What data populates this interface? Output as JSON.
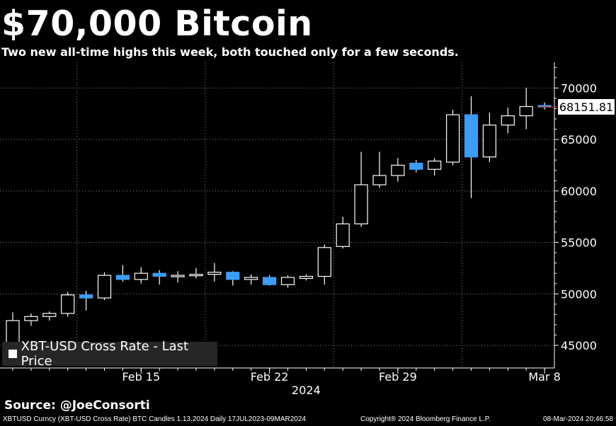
{
  "header": {
    "title": "$70,000 Bitcoin",
    "subtitle": "Two new all-time highs this week, both touched only for a few seconds."
  },
  "source": "Source: @JoeConsorti",
  "footer": {
    "left": "XBTUSD Curncy (XBT-USD Cross Rate) BTC Candles 1.13.2024  Daily 17JUL2023-09MAR2024",
    "middle": "Copyright® 2024 Bloomberg Finance L.P.",
    "right": "08-Mar-2024 20:46:58"
  },
  "colors": {
    "background": "#000000",
    "up_candle": "#000000",
    "down_candle": "#3d9df5",
    "grid": "#8a8a8a",
    "last_price_line": "#c0392b"
  },
  "chart_data": {
    "type": "candlestick",
    "title": "$70,000 Bitcoin",
    "legend": [
      "XBT-USD Cross Rate - Last Price"
    ],
    "legend_position": "bottom-left",
    "last_price": "68151.81",
    "y_axis_side": "right",
    "ylim": [
      42800,
      72500
    ],
    "yticks": [
      45000,
      50000,
      55000,
      60000,
      65000,
      70000
    ],
    "ytick_labels": [
      "45000",
      "50000",
      "55000",
      "60000",
      "65000",
      "70000"
    ],
    "xtick_labels": [
      "Feb 15",
      "Feb 22",
      "Feb 29",
      "Mar 8"
    ],
    "xtick_dates": [
      "2024-02-15",
      "2024-02-22",
      "2024-02-29",
      "2024-03-08"
    ],
    "xlabel": "2024",
    "candles": [
      {
        "date": "2024-02-08",
        "open": 45300,
        "high": 48200,
        "low": 45000,
        "close": 47400
      },
      {
        "date": "2024-02-09",
        "open": 47400,
        "high": 48100,
        "low": 46900,
        "close": 47800
      },
      {
        "date": "2024-02-10",
        "open": 47800,
        "high": 48300,
        "low": 47400,
        "close": 48100
      },
      {
        "date": "2024-02-11",
        "open": 48100,
        "high": 50200,
        "low": 47800,
        "close": 49900
      },
      {
        "date": "2024-02-12",
        "open": 49900,
        "high": 50300,
        "low": 48400,
        "close": 49600
      },
      {
        "date": "2024-02-13",
        "open": 49600,
        "high": 52100,
        "low": 49400,
        "close": 51800
      },
      {
        "date": "2024-02-14",
        "open": 51800,
        "high": 52800,
        "low": 51200,
        "close": 51400
      },
      {
        "date": "2024-02-15",
        "open": 51400,
        "high": 52600,
        "low": 51000,
        "close": 52000
      },
      {
        "date": "2024-02-16",
        "open": 52000,
        "high": 52300,
        "low": 50900,
        "close": 51700
      },
      {
        "date": "2024-02-17",
        "open": 51700,
        "high": 52200,
        "low": 51100,
        "close": 51800
      },
      {
        "date": "2024-02-18",
        "open": 51800,
        "high": 52500,
        "low": 51500,
        "close": 51900
      },
      {
        "date": "2024-02-19",
        "open": 51900,
        "high": 53000,
        "low": 51200,
        "close": 52100
      },
      {
        "date": "2024-02-20",
        "open": 52100,
        "high": 52200,
        "low": 50800,
        "close": 51400
      },
      {
        "date": "2024-02-21",
        "open": 51400,
        "high": 51900,
        "low": 50900,
        "close": 51600
      },
      {
        "date": "2024-02-22",
        "open": 51600,
        "high": 51800,
        "low": 50800,
        "close": 50900
      },
      {
        "date": "2024-02-23",
        "open": 50900,
        "high": 51800,
        "low": 50600,
        "close": 51600
      },
      {
        "date": "2024-02-24",
        "open": 51500,
        "high": 51900,
        "low": 51300,
        "close": 51700
      },
      {
        "date": "2024-02-25",
        "open": 51700,
        "high": 54800,
        "low": 50900,
        "close": 54500
      },
      {
        "date": "2024-02-26",
        "open": 54600,
        "high": 57500,
        "low": 54400,
        "close": 56800
      },
      {
        "date": "2024-02-27",
        "open": 56800,
        "high": 63800,
        "low": 56500,
        "close": 60600
      },
      {
        "date": "2024-02-28",
        "open": 60600,
        "high": 63800,
        "low": 60300,
        "close": 61500
      },
      {
        "date": "2024-02-29",
        "open": 61500,
        "high": 63200,
        "low": 60900,
        "close": 62500
      },
      {
        "date": "2024-03-01",
        "open": 62700,
        "high": 63000,
        "low": 61800,
        "close": 62100
      },
      {
        "date": "2024-03-02",
        "open": 62100,
        "high": 63200,
        "low": 61500,
        "close": 62900
      },
      {
        "date": "2024-03-03",
        "open": 62800,
        "high": 67900,
        "low": 62500,
        "close": 67400
      },
      {
        "date": "2024-03-04",
        "open": 67400,
        "high": 69200,
        "low": 59300,
        "close": 63300
      },
      {
        "date": "2024-03-05",
        "open": 63300,
        "high": 67600,
        "low": 62800,
        "close": 66400
      },
      {
        "date": "2024-03-06",
        "open": 66400,
        "high": 68100,
        "low": 65600,
        "close": 67300
      },
      {
        "date": "2024-03-07",
        "open": 67300,
        "high": 70000,
        "low": 66000,
        "close": 68200
      },
      {
        "date": "2024-03-08",
        "open": 68300,
        "high": 68600,
        "low": 67900,
        "close": 68150
      }
    ]
  }
}
